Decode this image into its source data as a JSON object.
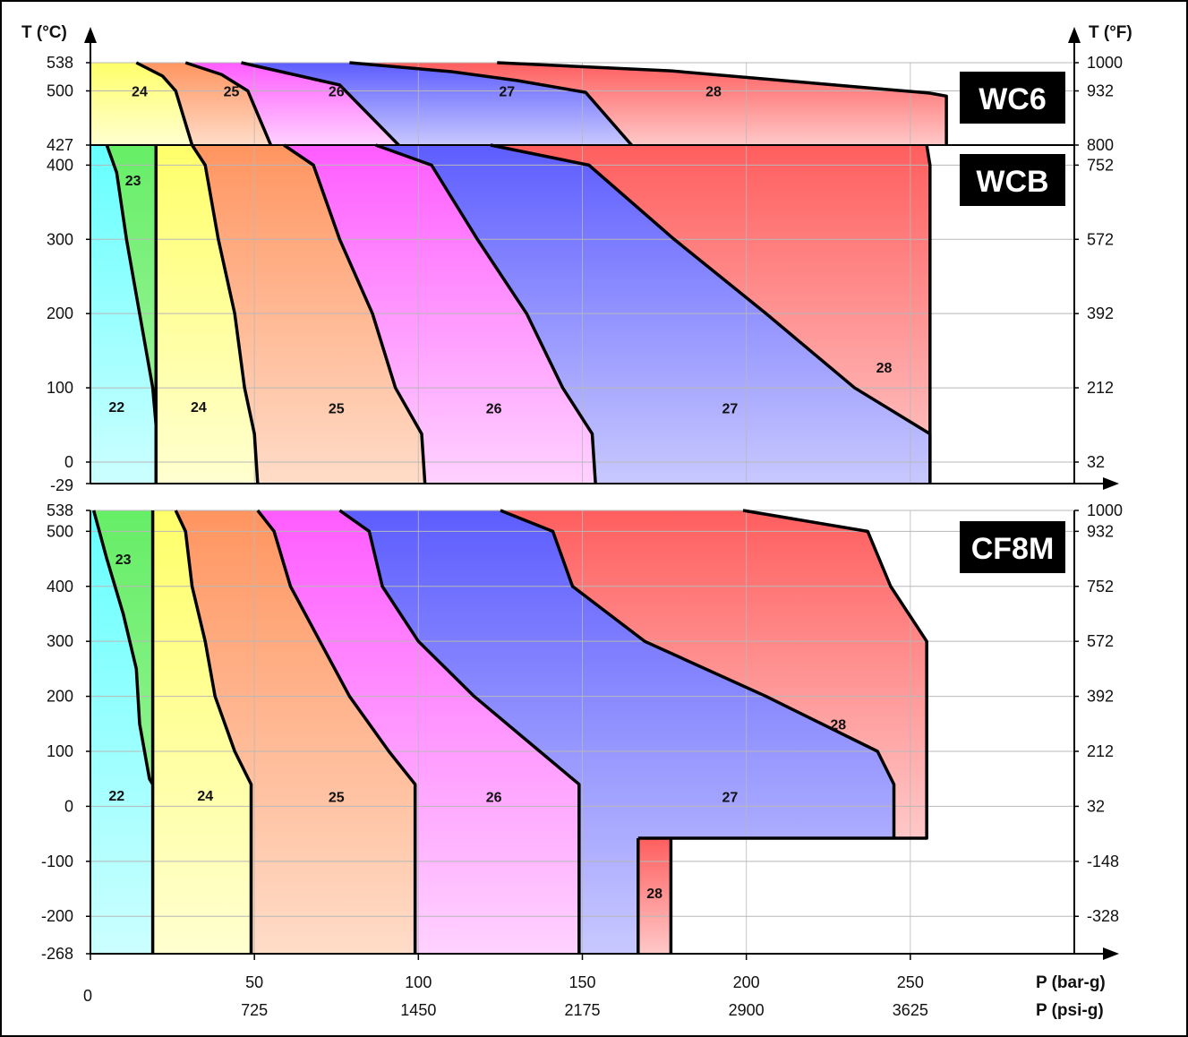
{
  "chart_data": [
    {
      "type": "area",
      "title": "WC6",
      "ylabel_left": "T (°C)",
      "ylabel_right": "T (°F)",
      "xlim": [
        0,
        300
      ],
      "ylim": [
        427,
        538
      ],
      "left_ticks": [
        {
          "v": 538,
          "label": "538"
        },
        {
          "v": 500,
          "label": "500"
        },
        {
          "v": 427,
          "label": "427"
        }
      ],
      "right_ticks": [
        {
          "v": 538,
          "label": "1000"
        },
        {
          "v": 500,
          "label": "932"
        },
        {
          "v": 427,
          "label": "800"
        }
      ],
      "boundaries": [
        {
          "id": "b24",
          "points": [
            [
              14,
              538
            ],
            [
              22,
              520
            ],
            [
              26,
              500
            ],
            [
              31,
              427
            ]
          ]
        },
        {
          "id": "b25",
          "points": [
            [
              29,
              538
            ],
            [
              40,
              522
            ],
            [
              48,
              500
            ],
            [
              55,
              427
            ]
          ]
        },
        {
          "id": "b26",
          "points": [
            [
              46,
              538
            ],
            [
              62,
              522
            ],
            [
              76,
              508
            ],
            [
              94,
              427
            ]
          ]
        },
        {
          "id": "b27",
          "points": [
            [
              79,
              538
            ],
            [
              110,
              526
            ],
            [
              130,
              514
            ],
            [
              151,
              498
            ],
            [
              165,
              427
            ]
          ]
        },
        {
          "id": "b28",
          "points": [
            [
              124,
              538
            ],
            [
              177,
              527
            ],
            [
              232,
              506
            ],
            [
              256,
              497
            ],
            [
              261,
              493
            ],
            [
              261,
              427
            ]
          ]
        }
      ],
      "zones": [
        {
          "id": "24",
          "label": "24",
          "x": 15,
          "y": 500,
          "color": "#ffff7a"
        },
        {
          "id": "25",
          "label": "25",
          "x": 43,
          "y": 500,
          "color": "#ff9d6b"
        },
        {
          "id": "26",
          "label": "26",
          "x": 75,
          "y": 500,
          "color": "#ff6cff"
        },
        {
          "id": "27",
          "label": "27",
          "x": 127,
          "y": 500,
          "color": "#6b6bff"
        },
        {
          "id": "28",
          "label": "28",
          "x": 190,
          "y": 500,
          "color": "#ff6b6b"
        }
      ]
    },
    {
      "type": "area",
      "title": "WCB",
      "ylabel_left": "T (°C)",
      "ylabel_right": "T (°F)",
      "xlim": [
        0,
        300
      ],
      "ylim": [
        -29,
        427
      ],
      "left_ticks": [
        {
          "v": 400,
          "label": "400"
        },
        {
          "v": 300,
          "label": "300"
        },
        {
          "v": 200,
          "label": "200"
        },
        {
          "v": 100,
          "label": "100"
        },
        {
          "v": 0,
          "label": "0"
        },
        {
          "v": -29,
          "label": "-29"
        }
      ],
      "right_ticks": [
        {
          "v": 400,
          "label": "752"
        },
        {
          "v": 300,
          "label": "572"
        },
        {
          "v": 200,
          "label": "392"
        },
        {
          "v": 100,
          "label": "212"
        },
        {
          "v": 0,
          "label": "32"
        }
      ],
      "boundaries": [
        {
          "id": "b22",
          "points": [
            [
              5,
              427
            ],
            [
              8,
              390
            ],
            [
              11,
              300
            ],
            [
              15,
              200
            ],
            [
              19,
              100
            ],
            [
              20,
              50
            ]
          ]
        },
        {
          "id": "b23",
          "points": [
            [
              20,
              427
            ],
            [
              20,
              -29
            ]
          ]
        },
        {
          "id": "b24",
          "points": [
            [
              31,
              427
            ],
            [
              35,
              400
            ],
            [
              39,
              300
            ],
            [
              44,
              200
            ],
            [
              47,
              100
            ],
            [
              50,
              38
            ],
            [
              51,
              -29
            ]
          ]
        },
        {
          "id": "b25",
          "points": [
            [
              59,
              427
            ],
            [
              68,
              400
            ],
            [
              76,
              300
            ],
            [
              86,
              200
            ],
            [
              93,
              100
            ],
            [
              101,
              38
            ],
            [
              102,
              -29
            ]
          ]
        },
        {
          "id": "b26",
          "points": [
            [
              87,
              427
            ],
            [
              104,
              400
            ],
            [
              118,
              300
            ],
            [
              133,
              200
            ],
            [
              144,
              100
            ],
            [
              153,
              38
            ],
            [
              154,
              -29
            ]
          ]
        },
        {
          "id": "b27",
          "points": [
            [
              122,
              427
            ],
            [
              152,
              400
            ],
            [
              178,
              300
            ],
            [
              206,
              200
            ],
            [
              233,
              100
            ],
            [
              256,
              38
            ],
            [
              256,
              -29
            ]
          ]
        },
        {
          "id": "b28",
          "points": [
            [
              255,
              427
            ],
            [
              256,
              400
            ],
            [
              256,
              -29
            ]
          ]
        }
      ],
      "zones": [
        {
          "id": "22",
          "label": "22",
          "x": 8,
          "y": 75,
          "color": "#66ffff"
        },
        {
          "id": "23",
          "label": "23",
          "x": 13,
          "y": 380,
          "color": "#66ee66"
        },
        {
          "id": "24",
          "label": "24",
          "x": 33,
          "y": 75,
          "color": "#ffff7a"
        },
        {
          "id": "25",
          "label": "25",
          "x": 75,
          "y": 73,
          "color": "#ff9d6b"
        },
        {
          "id": "26",
          "label": "26",
          "x": 123,
          "y": 73,
          "color": "#ff6cff"
        },
        {
          "id": "27",
          "label": "27",
          "x": 195,
          "y": 73,
          "color": "#6b6bff"
        },
        {
          "id": "28",
          "label": "28",
          "x": 242,
          "y": 128,
          "color": "#ff6b6b"
        }
      ]
    },
    {
      "type": "area",
      "title": "CF8M",
      "ylabel_left": "T (°C)",
      "ylabel_right": "T (°F)",
      "xlim": [
        0,
        300
      ],
      "ylim": [
        -268,
        538
      ],
      "left_ticks": [
        {
          "v": 538,
          "label": "538"
        },
        {
          "v": 500,
          "label": "500"
        },
        {
          "v": 400,
          "label": "400"
        },
        {
          "v": 300,
          "label": "300"
        },
        {
          "v": 200,
          "label": "200"
        },
        {
          "v": 100,
          "label": "100"
        },
        {
          "v": 0,
          "label": "0"
        },
        {
          "v": -100,
          "label": "-100"
        },
        {
          "v": -200,
          "label": "-200"
        },
        {
          "v": -268,
          "label": "-268"
        }
      ],
      "right_ticks": [
        {
          "v": 538,
          "label": "1000"
        },
        {
          "v": 500,
          "label": "932"
        },
        {
          "v": 400,
          "label": "752"
        },
        {
          "v": 300,
          "label": "572"
        },
        {
          "v": 200,
          "label": "392"
        },
        {
          "v": 100,
          "label": "212"
        },
        {
          "v": 0,
          "label": "32"
        },
        {
          "v": -100,
          "label": "-148"
        },
        {
          "v": -200,
          "label": "-328"
        }
      ],
      "boundaries": [
        {
          "id": "b22",
          "points": [
            [
              1,
              538
            ],
            [
              5,
              450
            ],
            [
              10,
              350
            ],
            [
              14,
              250
            ],
            [
              15,
              150
            ],
            [
              18,
              50
            ],
            [
              19,
              40
            ]
          ]
        },
        {
          "id": "b23",
          "points": [
            [
              19,
              538
            ],
            [
              19,
              -268
            ]
          ]
        },
        {
          "id": "b24",
          "points": [
            [
              26,
              538
            ],
            [
              29,
              500
            ],
            [
              31,
              400
            ],
            [
              35,
              300
            ],
            [
              38,
              200
            ],
            [
              44,
              100
            ],
            [
              49,
              40
            ],
            [
              49,
              -268
            ]
          ]
        },
        {
          "id": "b25",
          "points": [
            [
              51,
              538
            ],
            [
              56,
              500
            ],
            [
              61,
              400
            ],
            [
              70,
              300
            ],
            [
              79,
              200
            ],
            [
              91,
              100
            ],
            [
              99,
              40
            ],
            [
              99,
              -268
            ]
          ]
        },
        {
          "id": "b26",
          "points": [
            [
              76,
              538
            ],
            [
              85,
              500
            ],
            [
              89,
              400
            ],
            [
              100,
              300
            ],
            [
              117,
              200
            ],
            [
              137,
              100
            ],
            [
              149,
              40
            ],
            [
              149,
              -268
            ]
          ]
        },
        {
          "id": "b27",
          "points": [
            [
              125,
              538
            ],
            [
              141,
              500
            ],
            [
              147,
              400
            ],
            [
              169,
              300
            ],
            [
              206,
              200
            ],
            [
              240,
              100
            ],
            [
              245,
              40
            ],
            [
              245,
              -58
            ]
          ]
        },
        {
          "id": "b28a",
          "points": [
            [
              199,
              538
            ],
            [
              237,
              500
            ],
            [
              244,
              400
            ],
            [
              255,
              300
            ],
            [
              255,
              -58
            ],
            [
              167,
              -58
            ]
          ]
        },
        {
          "id": "b28b",
          "points": [
            [
              167,
              -58
            ],
            [
              167,
              -268
            ]
          ]
        },
        {
          "id": "b28c",
          "points": [
            [
              177,
              -58
            ],
            [
              177,
              -268
            ]
          ]
        }
      ],
      "zones": [
        {
          "id": "22",
          "label": "22",
          "x": 8,
          "y": 20,
          "color": "#66ffff"
        },
        {
          "id": "23",
          "label": "23",
          "x": 10,
          "y": 450,
          "color": "#66ee66"
        },
        {
          "id": "24",
          "label": "24",
          "x": 35,
          "y": 20,
          "color": "#ffff7a"
        },
        {
          "id": "25",
          "label": "25",
          "x": 75,
          "y": 18,
          "color": "#ff9d6b"
        },
        {
          "id": "26",
          "label": "26",
          "x": 123,
          "y": 18,
          "color": "#ff6cff"
        },
        {
          "id": "27",
          "label": "27",
          "x": 195,
          "y": 18,
          "color": "#6b6bff"
        },
        {
          "id": "28",
          "label": "28",
          "x": 228,
          "y": 150,
          "color": "#ff6b6b"
        },
        {
          "id": "28",
          "label": "28",
          "x": 172,
          "y": -157,
          "color": "#ff6b6b"
        }
      ]
    }
  ],
  "axes": {
    "left_title": "T (°C)",
    "right_title": "T (°F)",
    "x_title_bar": "P (bar-g)",
    "x_title_psi": "P (psi-g)",
    "x_ticks_bar": [
      {
        "v": 0,
        "label": "0"
      },
      {
        "v": 50,
        "label": "50"
      },
      {
        "v": 100,
        "label": "100"
      },
      {
        "v": 150,
        "label": "150"
      },
      {
        "v": 200,
        "label": "200"
      },
      {
        "v": 250,
        "label": "250"
      }
    ],
    "x_ticks_psi": [
      {
        "v": 50,
        "label": "725"
      },
      {
        "v": 100,
        "label": "1450"
      },
      {
        "v": 150,
        "label": "2175"
      },
      {
        "v": 200,
        "label": "2900"
      },
      {
        "v": 250,
        "label": "3625"
      }
    ],
    "grid": true
  }
}
